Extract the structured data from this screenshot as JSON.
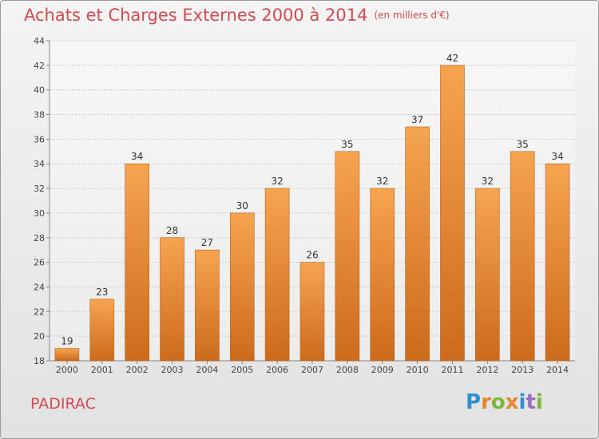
{
  "page": {
    "title": "Achats et Charges Externes 2000 à 2014",
    "subtitle": "(en milliers d'€)",
    "commune": "PADIRAC",
    "logo_text": "Proxiti",
    "colors": {
      "title": "#d44a4f",
      "bar_top": "#f6a450",
      "bar_bottom": "#cc6b1c",
      "logo": [
        "#2f8fd4",
        "#e8842a",
        "#7ab83a",
        "#e8842a",
        "#2f8fd4",
        "#9a6fc0",
        "#7ab83a"
      ]
    }
  },
  "chart_data": {
    "type": "bar",
    "categories": [
      "2000",
      "2001",
      "2002",
      "2003",
      "2004",
      "2005",
      "2006",
      "2007",
      "2008",
      "2009",
      "2010",
      "2011",
      "2012",
      "2013",
      "2014"
    ],
    "values": [
      19,
      23,
      34,
      28,
      27,
      30,
      32,
      26,
      35,
      32,
      37,
      42,
      32,
      35,
      34
    ],
    "ylim": [
      18,
      44
    ],
    "yticks": [
      18,
      20,
      22,
      24,
      26,
      28,
      30,
      32,
      34,
      36,
      38,
      40,
      42,
      44
    ],
    "grid": true,
    "data_labels": true
  }
}
